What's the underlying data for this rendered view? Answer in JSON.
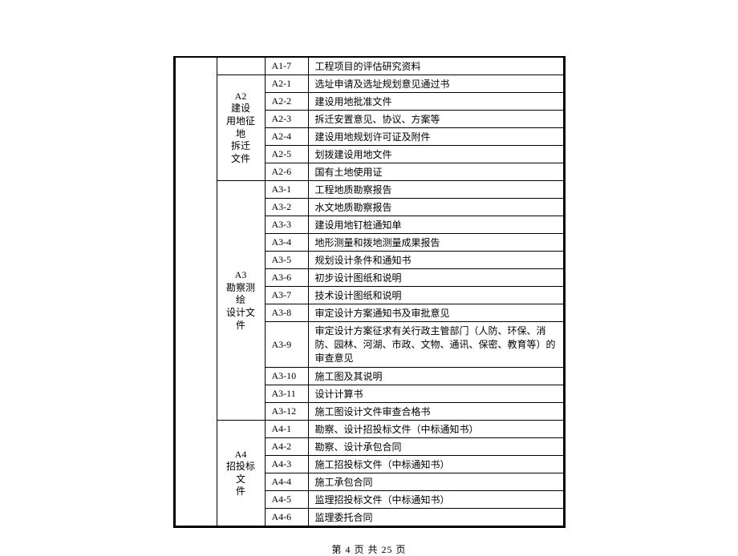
{
  "categories": [
    {
      "label": "",
      "items": [
        {
          "code": "A1-7",
          "desc": "工程项目的评估研究资料"
        }
      ]
    },
    {
      "label": "A2\n建设\n用地征地\n拆迁\n文件",
      "items": [
        {
          "code": "A2-1",
          "desc": "选址申请及选址规划意见通过书"
        },
        {
          "code": "A2-2",
          "desc": "建设用地批准文件"
        },
        {
          "code": "A2-3",
          "desc": "拆迁安置意见、协议、方案等"
        },
        {
          "code": "A2-4",
          "desc": "建设用地规划许可证及附件"
        },
        {
          "code": "A2-5",
          "desc": "划拨建设用地文件"
        },
        {
          "code": "A2-6",
          "desc": "国有土地使用证"
        }
      ]
    },
    {
      "label": "A3\n勘察测绘\n设计文件",
      "items": [
        {
          "code": "A3-1",
          "desc": "工程地质勘察报告"
        },
        {
          "code": "A3-2",
          "desc": "水文地质勘察报告"
        },
        {
          "code": "A3-3",
          "desc": "建设用地钉桩通知单"
        },
        {
          "code": "A3-4",
          "desc": "地形测量和拨地测量成果报告"
        },
        {
          "code": "A3-5",
          "desc": "规划设计条件和通知书"
        },
        {
          "code": "A3-6",
          "desc": "初步设计图纸和说明"
        },
        {
          "code": "A3-7",
          "desc": "技术设计图纸和说明"
        },
        {
          "code": "A3-8",
          "desc": "审定设计方案通知书及审批意见"
        },
        {
          "code": "A3-9",
          "desc": "审定设计方案征求有关行政主管部门（人防、环保、消防、园林、河湖、市政、文物、通讯、保密、教育等）的审查意见"
        },
        {
          "code": "A3-10",
          "desc": "施工图及其说明"
        },
        {
          "code": "A3-11",
          "desc": "设计计算书"
        },
        {
          "code": "A3-12",
          "desc": "施工图设计文件审查合格书"
        }
      ]
    },
    {
      "label": "A4\n招投标文\n件",
      "items": [
        {
          "code": "A4-1",
          "desc": "勘察、设计招投标文件（中标通知书）"
        },
        {
          "code": "A4-2",
          "desc": "勘察、设计承包合同"
        },
        {
          "code": "A4-3",
          "desc": "施工招投标文件（中标通知书）"
        },
        {
          "code": "A4-4",
          "desc": "施工承包合同"
        },
        {
          "code": "A4-5",
          "desc": "监理招投标文件（中标通知书）"
        },
        {
          "code": "A4-6",
          "desc": "监理委托合同"
        }
      ]
    }
  ],
  "footer": "第 4 页 共 25 页"
}
